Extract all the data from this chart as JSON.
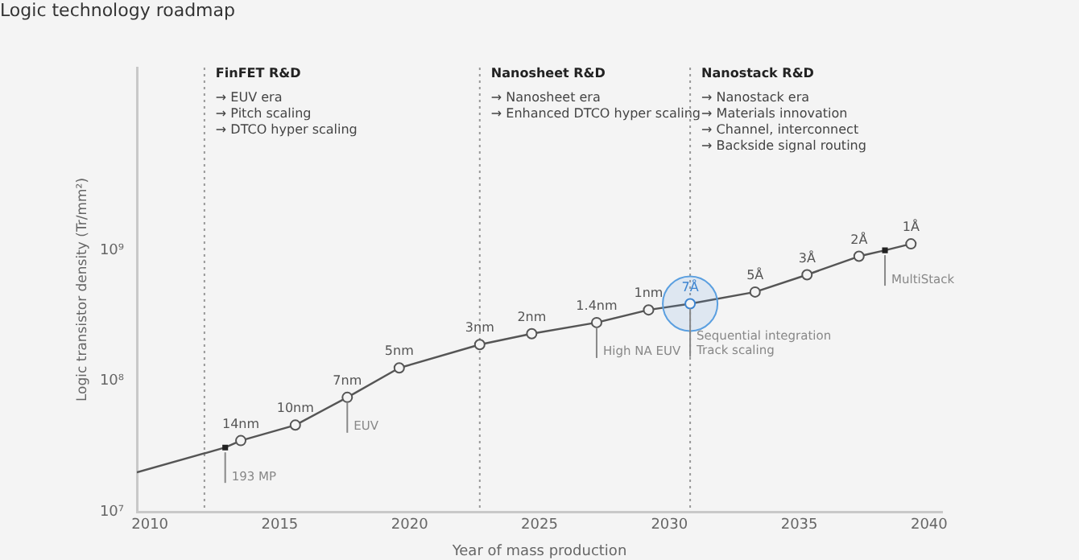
{
  "chart_data": {
    "type": "line",
    "title": "Logic technology roadmap",
    "xlabel": "Year of mass production",
    "ylabel": "Logic transistor density (Tr/mm²)",
    "xlim": [
      2009.5,
      2040.5
    ],
    "xticks": [
      2010,
      2015,
      2020,
      2025,
      2030,
      2035,
      2040
    ],
    "ylim": [
      10000000,
      25000000000
    ],
    "yticks": [
      {
        "value": 10000000,
        "label": "10⁷"
      },
      {
        "value": 100000000,
        "label": "10⁸"
      },
      {
        "value": 1000000000,
        "label": "10⁹"
      }
    ],
    "log": "y",
    "grid": false,
    "legend": false,
    "series": [
      {
        "marker": "none",
        "color": "#555555",
        "x": [
          2009.5,
          2012.9,
          2013.5,
          2015.6,
          2017.6,
          2019.6,
          2022.7,
          2024.7,
          2027.2,
          2029.2,
          2030.8,
          2033.3,
          2035.3,
          2037.3,
          2038.3,
          2039.3
        ],
        "values": [
          20000000,
          31000000,
          35000000,
          46000000,
          75000000,
          126000000,
          190000000,
          230000000,
          280000000,
          350000000,
          390000000,
          480000000,
          650000000,
          900000000,
          1000000000,
          1120000000
        ]
      },
      {
        "type": "bubble",
        "color": "#5a9fe0",
        "x": [
          2030.8
        ],
        "values": [
          390000000
        ],
        "sizes": [
          1
        ]
      },
      {
        "type": "scatter",
        "marker": "circle",
        "name": "14nm",
        "color": "#555555",
        "x": [
          2013.5
        ],
        "values": [
          35000000
        ]
      },
      {
        "type": "scatter",
        "marker": "circle",
        "name": "10nm",
        "color": "#555555",
        "x": [
          2015.6
        ],
        "values": [
          46000000
        ]
      },
      {
        "type": "scatter",
        "marker": "circle",
        "name": "7nm",
        "color": "#555555",
        "x": [
          2017.6
        ],
        "values": [
          75000000
        ]
      },
      {
        "type": "scatter",
        "marker": "circle",
        "name": "5nm",
        "color": "#555555",
        "x": [
          2019.6
        ],
        "values": [
          126000000
        ]
      },
      {
        "type": "scatter",
        "marker": "circle",
        "name": "3nm",
        "color": "#555555",
        "x": [
          2022.7
        ],
        "values": [
          190000000
        ]
      },
      {
        "type": "scatter",
        "marker": "circle",
        "name": "2nm",
        "color": "#555555",
        "x": [
          2024.7
        ],
        "values": [
          230000000
        ]
      },
      {
        "type": "scatter",
        "marker": "circle",
        "name": "1.4nm",
        "color": "#555555",
        "x": [
          2027.2
        ],
        "values": [
          280000000
        ]
      },
      {
        "type": "scatter",
        "marker": "circle",
        "name": "1nm",
        "color": "#555555",
        "x": [
          2029.2
        ],
        "values": [
          350000000
        ]
      },
      {
        "type": "scatter",
        "marker": "circle",
        "name": "7Å",
        "color": "#3d85d1",
        "x": [
          2030.8
        ],
        "values": [
          390000000
        ]
      },
      {
        "type": "scatter",
        "marker": "circle",
        "name": "5Å",
        "color": "#555555",
        "x": [
          2033.3
        ],
        "values": [
          480000000
        ]
      },
      {
        "type": "scatter",
        "marker": "circle",
        "name": "3Å",
        "color": "#555555",
        "x": [
          2035.3
        ],
        "values": [
          650000000
        ]
      },
      {
        "type": "scatter",
        "marker": "circle",
        "name": "2Å",
        "color": "#555555",
        "x": [
          2037.3
        ],
        "values": [
          900000000
        ]
      },
      {
        "type": "scatter",
        "marker": "circle",
        "name": "1Å",
        "color": "#555555",
        "x": [
          2039.3
        ],
        "values": [
          1120000000
        ]
      },
      {
        "type": "scatter",
        "marker": "square",
        "color": "#222222",
        "x": [
          2012.9,
          2038.3
        ],
        "values": [
          31000000,
          1000000000
        ]
      }
    ],
    "ref_lines": [
      {
        "axis": "x",
        "value": 2012.1,
        "label": "FinFET R&D\n→ EUV era\n→ Pitch scaling\n→ DTCO hyper scaling",
        "color": "#999999",
        "line_style": "dotted"
      },
      {
        "axis": "x",
        "value": 2022.7,
        "label": "Nanosheet R&D\n→ Nanosheet era\n→ Enhanced DTCO hyper scaling",
        "color": "#999999",
        "line_style": "dotted"
      },
      {
        "axis": "x",
        "value": 2030.8,
        "label": "Nanostack R&D\n→ Nanostack era\n→ Materials innovation\n→ Channel, interconnect\n→ Backside signal routing",
        "color": "#999999",
        "line_style": "dotted"
      }
    ],
    "annotations": [
      {
        "text": "193 MP",
        "x": 2012.9,
        "y": 31000000
      },
      {
        "text": "EUV",
        "x": 2017.6,
        "y": 75000000
      },
      {
        "text": "High NA EUV",
        "x": 2027.2,
        "y": 280000000
      },
      {
        "text": "Sequential integration\nTrack scaling",
        "x": 2030.8,
        "y": 390000000
      },
      {
        "text": "MultiStack",
        "x": 2038.3,
        "y": 1000000000
      }
    ]
  }
}
